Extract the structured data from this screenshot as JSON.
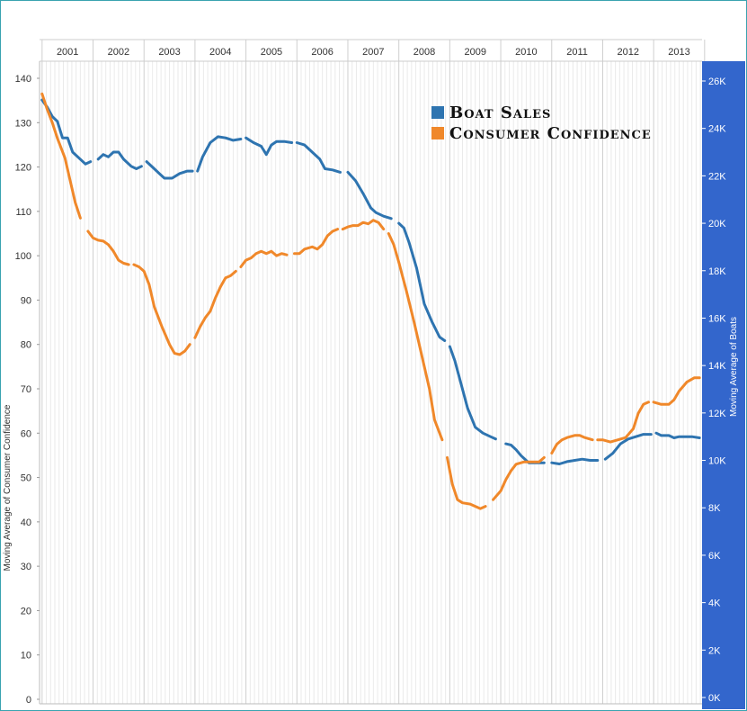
{
  "chart_data": {
    "type": "line",
    "title": "",
    "x_axis": {
      "years": [
        "2001",
        "2002",
        "2003",
        "2004",
        "2005",
        "2006",
        "2007",
        "2008",
        "2009",
        "2010",
        "2011",
        "2012",
        "2013"
      ],
      "range": [
        2000.95,
        2013.95
      ]
    },
    "y_left": {
      "label": "Moving Average of Consumer Confidence",
      "range": [
        0,
        140
      ],
      "ticks": [
        "0",
        "10",
        "20",
        "30",
        "40",
        "50",
        "60",
        "70",
        "80",
        "90",
        "100",
        "110",
        "120",
        "130",
        "140"
      ]
    },
    "y_right": {
      "label": "Moving Average of Boats",
      "range": [
        0,
        26000
      ],
      "ticks": [
        "0K",
        "2K",
        "4K",
        "6K",
        "8K",
        "10K",
        "12K",
        "14K",
        "16K",
        "18K",
        "20K",
        "22K",
        "24K",
        "26K"
      ]
    },
    "grid": true,
    "legend": {
      "position": "top-right"
    },
    "series": [
      {
        "name": "Boat Sales",
        "axis": "right",
        "color": "#2e74b0",
        "segments": [
          [
            [
              2001.0,
              25200
            ],
            [
              2001.1,
              24900
            ],
            [
              2001.2,
              24500
            ],
            [
              2001.3,
              24300
            ],
            [
              2001.4,
              23600
            ],
            [
              2001.5,
              23600
            ],
            [
              2001.6,
              23000
            ],
            [
              2001.7,
              22800
            ],
            [
              2001.85,
              22500
            ],
            [
              2001.95,
              22600
            ]
          ],
          [
            [
              2002.1,
              22700
            ],
            [
              2002.2,
              22900
            ],
            [
              2002.3,
              22800
            ],
            [
              2002.4,
              23000
            ],
            [
              2002.5,
              23000
            ],
            [
              2002.6,
              22700
            ],
            [
              2002.75,
              22400
            ],
            [
              2002.85,
              22300
            ],
            [
              2002.95,
              22400
            ]
          ],
          [
            [
              2003.05,
              22600
            ],
            [
              2003.2,
              22300
            ],
            [
              2003.3,
              22100
            ],
            [
              2003.4,
              21900
            ],
            [
              2003.55,
              21900
            ],
            [
              2003.7,
              22100
            ],
            [
              2003.85,
              22200
            ],
            [
              2003.95,
              22200
            ]
          ],
          [
            [
              2004.05,
              22200
            ],
            [
              2004.15,
              22800
            ],
            [
              2004.3,
              23400
            ],
            [
              2004.45,
              23650
            ],
            [
              2004.6,
              23600
            ],
            [
              2004.75,
              23500
            ],
            [
              2004.9,
              23550
            ]
          ],
          [
            [
              2005.0,
              23600
            ],
            [
              2005.15,
              23400
            ],
            [
              2005.3,
              23250
            ],
            [
              2005.4,
              22900
            ],
            [
              2005.5,
              23300
            ],
            [
              2005.6,
              23450
            ],
            [
              2005.75,
              23450
            ],
            [
              2005.9,
              23400
            ]
          ],
          [
            [
              2006.0,
              23400
            ],
            [
              2006.15,
              23300
            ],
            [
              2006.3,
              23000
            ],
            [
              2006.45,
              22700
            ],
            [
              2006.55,
              22300
            ],
            [
              2006.7,
              22250
            ],
            [
              2006.85,
              22150
            ]
          ],
          [
            [
              2007.0,
              22150
            ],
            [
              2007.15,
              21800
            ],
            [
              2007.3,
              21250
            ],
            [
              2007.45,
              20650
            ],
            [
              2007.55,
              20450
            ],
            [
              2007.7,
              20300
            ],
            [
              2007.85,
              20200
            ]
          ],
          [
            [
              2008.0,
              20000
            ],
            [
              2008.1,
              19800
            ],
            [
              2008.2,
              19200
            ],
            [
              2008.35,
              18100
            ],
            [
              2008.5,
              16600
            ],
            [
              2008.65,
              15850
            ],
            [
              2008.8,
              15200
            ],
            [
              2008.9,
              15050
            ]
          ],
          [
            [
              2009.0,
              14800
            ],
            [
              2009.1,
              14200
            ],
            [
              2009.2,
              13400
            ],
            [
              2009.35,
              12200
            ],
            [
              2009.5,
              11400
            ],
            [
              2009.65,
              11150
            ],
            [
              2009.8,
              11000
            ],
            [
              2009.9,
              10900
            ]
          ],
          [
            [
              2010.1,
              10700
            ],
            [
              2010.2,
              10650
            ],
            [
              2010.3,
              10450
            ],
            [
              2010.4,
              10200
            ],
            [
              2010.55,
              9900
            ],
            [
              2010.7,
              9900
            ],
            [
              2010.85,
              9900
            ]
          ],
          [
            [
              2011.0,
              9900
            ],
            [
              2011.15,
              9850
            ],
            [
              2011.3,
              9950
            ],
            [
              2011.45,
              10000
            ],
            [
              2011.6,
              10050
            ],
            [
              2011.75,
              10000
            ],
            [
              2011.9,
              10000
            ]
          ],
          [
            [
              2012.05,
              10050
            ],
            [
              2012.2,
              10300
            ],
            [
              2012.35,
              10700
            ],
            [
              2012.5,
              10900
            ],
            [
              2012.65,
              11000
            ],
            [
              2012.8,
              11100
            ],
            [
              2012.95,
              11100
            ]
          ],
          [
            [
              2013.05,
              11150
            ],
            [
              2013.15,
              11050
            ],
            [
              2013.3,
              11050
            ],
            [
              2013.4,
              10950
            ],
            [
              2013.5,
              11000
            ],
            [
              2013.6,
              11000
            ],
            [
              2013.75,
              11000
            ],
            [
              2013.9,
              10950
            ]
          ]
        ]
      },
      {
        "name": "Consumer Confidence",
        "axis": "left",
        "color": "#f0882a",
        "segments": [
          [
            [
              2001.0,
              136.5
            ],
            [
              2001.1,
              133
            ],
            [
              2001.2,
              130
            ],
            [
              2001.3,
              126.5
            ],
            [
              2001.45,
              122
            ],
            [
              2001.55,
              117
            ],
            [
              2001.65,
              112
            ],
            [
              2001.75,
              108.5
            ]
          ],
          [
            [
              2001.9,
              105.5
            ],
            [
              2002.0,
              104
            ],
            [
              2002.1,
              103.5
            ],
            [
              2002.2,
              103.3
            ],
            [
              2002.3,
              102.5
            ],
            [
              2002.4,
              101
            ],
            [
              2002.5,
              99
            ],
            [
              2002.6,
              98.3
            ],
            [
              2002.7,
              98
            ]
          ],
          [
            [
              2002.8,
              98
            ],
            [
              2002.9,
              97.5
            ],
            [
              2003.0,
              96.5
            ],
            [
              2003.1,
              93.5
            ],
            [
              2003.2,
              88.5
            ],
            [
              2003.35,
              84
            ],
            [
              2003.5,
              80
            ],
            [
              2003.6,
              78
            ],
            [
              2003.7,
              77.7
            ],
            [
              2003.8,
              78.5
            ],
            [
              2003.9,
              80
            ]
          ],
          [
            [
              2004.0,
              81.5
            ],
            [
              2004.1,
              84
            ],
            [
              2004.2,
              86
            ],
            [
              2004.3,
              87.5
            ],
            [
              2004.4,
              90.5
            ],
            [
              2004.5,
              93
            ],
            [
              2004.6,
              95
            ],
            [
              2004.7,
              95.5
            ],
            [
              2004.8,
              96.5
            ]
          ],
          [
            [
              2004.9,
              97.5
            ],
            [
              2005.0,
              99
            ],
            [
              2005.1,
              99.5
            ],
            [
              2005.2,
              100.5
            ],
            [
              2005.3,
              101
            ],
            [
              2005.4,
              100.5
            ],
            [
              2005.5,
              101
            ],
            [
              2005.6,
              100
            ],
            [
              2005.7,
              100.5
            ],
            [
              2005.8,
              100.2
            ]
          ],
          [
            [
              2005.95,
              100.5
            ],
            [
              2006.05,
              100.5
            ],
            [
              2006.15,
              101.5
            ],
            [
              2006.3,
              102
            ],
            [
              2006.4,
              101.5
            ],
            [
              2006.5,
              102.5
            ],
            [
              2006.6,
              104.5
            ],
            [
              2006.7,
              105.5
            ],
            [
              2006.8,
              106
            ]
          ],
          [
            [
              2006.9,
              106
            ],
            [
              2007.0,
              106.5
            ],
            [
              2007.1,
              106.8
            ],
            [
              2007.2,
              106.8
            ],
            [
              2007.3,
              107.5
            ],
            [
              2007.4,
              107.2
            ],
            [
              2007.5,
              108
            ],
            [
              2007.6,
              107.5
            ],
            [
              2007.7,
              106
            ]
          ],
          [
            [
              2007.8,
              105
            ],
            [
              2007.9,
              102.5
            ],
            [
              2008.0,
              98.5
            ],
            [
              2008.15,
              92
            ],
            [
              2008.3,
              85
            ],
            [
              2008.45,
              77.5
            ],
            [
              2008.6,
              70
            ],
            [
              2008.7,
              63
            ],
            [
              2008.85,
              58.5
            ]
          ],
          [
            [
              2008.95,
              54.5
            ],
            [
              2009.05,
              48.5
            ],
            [
              2009.15,
              45
            ],
            [
              2009.25,
              44.3
            ],
            [
              2009.4,
              44
            ],
            [
              2009.5,
              43.5
            ],
            [
              2009.6,
              43
            ],
            [
              2009.7,
              43.5
            ]
          ],
          [
            [
              2009.85,
              45
            ],
            [
              2010.0,
              47
            ],
            [
              2010.1,
              49.5
            ],
            [
              2010.2,
              51.5
            ],
            [
              2010.3,
              53
            ],
            [
              2010.45,
              53.5
            ],
            [
              2010.6,
              53.5
            ],
            [
              2010.75,
              53.5
            ],
            [
              2010.85,
              54.5
            ]
          ],
          [
            [
              2011.0,
              55.5
            ],
            [
              2011.1,
              57.5
            ],
            [
              2011.2,
              58.5
            ],
            [
              2011.3,
              59
            ],
            [
              2011.45,
              59.5
            ],
            [
              2011.55,
              59.5
            ],
            [
              2011.65,
              59
            ],
            [
              2011.8,
              58.5
            ]
          ],
          [
            [
              2011.9,
              58.5
            ],
            [
              2012.0,
              58.5
            ],
            [
              2012.15,
              58
            ],
            [
              2012.3,
              58.5
            ],
            [
              2012.45,
              59
            ],
            [
              2012.6,
              61
            ],
            [
              2012.7,
              64.5
            ],
            [
              2012.8,
              66.5
            ],
            [
              2012.9,
              67
            ]
          ],
          [
            [
              2013.0,
              67
            ],
            [
              2013.15,
              66.5
            ],
            [
              2013.3,
              66.5
            ],
            [
              2013.4,
              67.5
            ],
            [
              2013.5,
              69.5
            ],
            [
              2013.65,
              71.5
            ],
            [
              2013.8,
              72.5
            ],
            [
              2013.9,
              72.5
            ]
          ]
        ]
      }
    ]
  }
}
